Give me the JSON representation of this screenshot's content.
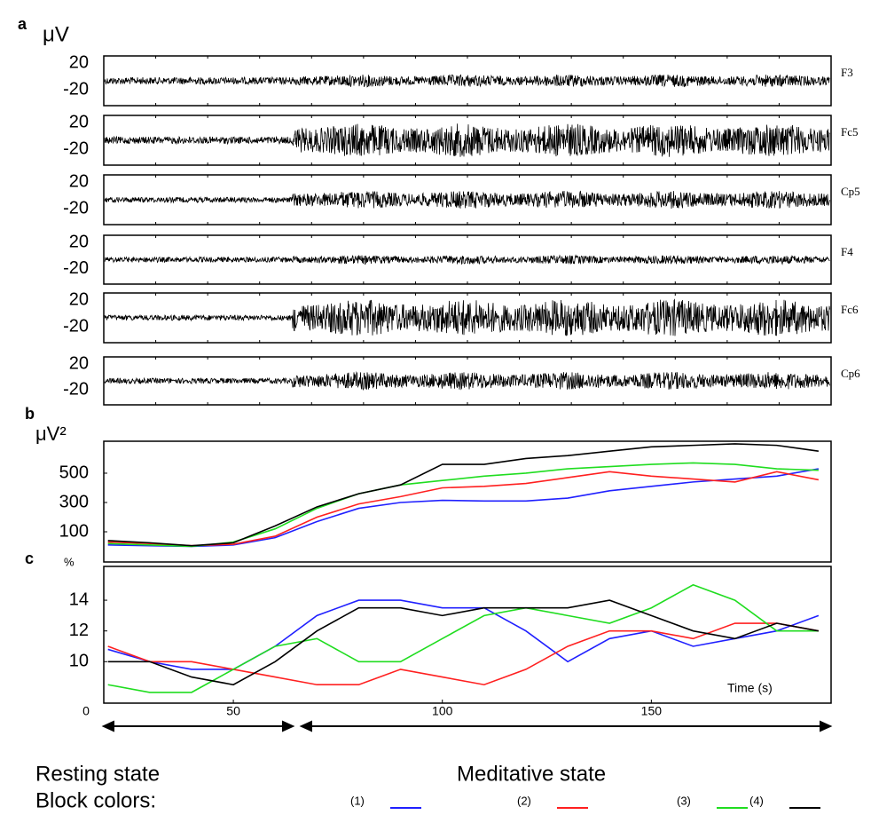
{
  "chart_data": [
    {
      "type": "eeg",
      "label": "a",
      "unit": "μV",
      "channels": [
        {
          "name": "F3",
          "yticks": [
            20,
            -20
          ]
        },
        {
          "name": "Fc5",
          "yticks": [
            20,
            -20
          ]
        },
        {
          "name": "Cp5",
          "yticks": [
            20,
            -20
          ]
        },
        {
          "name": "F4",
          "yticks": [
            20,
            -20
          ]
        },
        {
          "name": "Fc6",
          "yticks": [
            20,
            -20
          ]
        },
        {
          "name": "Cp6",
          "yticks": [
            20,
            -20
          ]
        }
      ]
    },
    {
      "type": "line",
      "label": "b",
      "ylabel": "μV²",
      "x": [
        20,
        30,
        40,
        50,
        60,
        70,
        80,
        90,
        100,
        110,
        120,
        130,
        140,
        150,
        160,
        170,
        180,
        190
      ],
      "xlim": [
        19,
        193
      ],
      "ylim": [
        -106,
        718
      ],
      "yticks": [
        100,
        300,
        500
      ],
      "series": [
        {
          "name": "(1)",
          "color": "#2020ff",
          "values": [
            10,
            5,
            0,
            10,
            60,
            170,
            260,
            300,
            315,
            310,
            310,
            330,
            380,
            410,
            440,
            460,
            480,
            530
          ]
        },
        {
          "name": "(2)",
          "color": "#ff2020",
          "values": [
            30,
            20,
            5,
            15,
            70,
            200,
            290,
            340,
            400,
            410,
            430,
            470,
            510,
            480,
            460,
            440,
            510,
            455
          ]
        },
        {
          "name": "(3)",
          "color": "#20dd20",
          "values": [
            20,
            10,
            0,
            30,
            120,
            260,
            360,
            420,
            450,
            480,
            500,
            530,
            545,
            560,
            570,
            560,
            530,
            520
          ]
        },
        {
          "name": "(4)",
          "color": "#000000",
          "values": [
            40,
            25,
            5,
            25,
            140,
            270,
            360,
            420,
            560,
            560,
            600,
            620,
            650,
            680,
            690,
            700,
            690,
            650
          ]
        }
      ]
    },
    {
      "type": "line",
      "label": "c",
      "ylabel": "%",
      "xlabel": "Time (s)",
      "x": [
        20,
        30,
        40,
        50,
        60,
        70,
        80,
        90,
        100,
        110,
        120,
        130,
        140,
        150,
        160,
        170,
        180,
        190
      ],
      "xlim": [
        19,
        193
      ],
      "ylim": [
        7.3,
        16.2
      ],
      "yticks": [
        10,
        12,
        14
      ],
      "xticks": [
        0,
        50,
        100,
        150
      ],
      "series": [
        {
          "name": "(1)",
          "color": "#2020ff",
          "values": [
            10.8,
            10,
            9.5,
            9.5,
            11,
            13,
            14,
            14,
            13.5,
            13.5,
            12,
            10,
            11.5,
            12,
            11,
            11.5,
            12,
            13
          ]
        },
        {
          "name": "(2)",
          "color": "#ff2020",
          "values": [
            11,
            10,
            10,
            9.5,
            9,
            8.5,
            8.5,
            9.5,
            9,
            8.5,
            9.5,
            11,
            12,
            12,
            11.5,
            12.5,
            12.5,
            12
          ]
        },
        {
          "name": "(3)",
          "color": "#20dd20",
          "values": [
            8.5,
            8,
            8,
            9.5,
            11,
            11.5,
            10,
            10,
            11.5,
            13,
            13.5,
            13,
            12.5,
            13.5,
            15,
            14,
            12,
            12
          ]
        },
        {
          "name": "(4)",
          "color": "#000000",
          "values": [
            10,
            10,
            9,
            8.5,
            10,
            12,
            13.5,
            13.5,
            13,
            13.5,
            13.5,
            13.5,
            14,
            13,
            12,
            11.5,
            12.5,
            12
          ]
        }
      ]
    }
  ],
  "footer": {
    "states": [
      "Resting state",
      "Meditative state"
    ],
    "legend_title": "Block colors:"
  }
}
